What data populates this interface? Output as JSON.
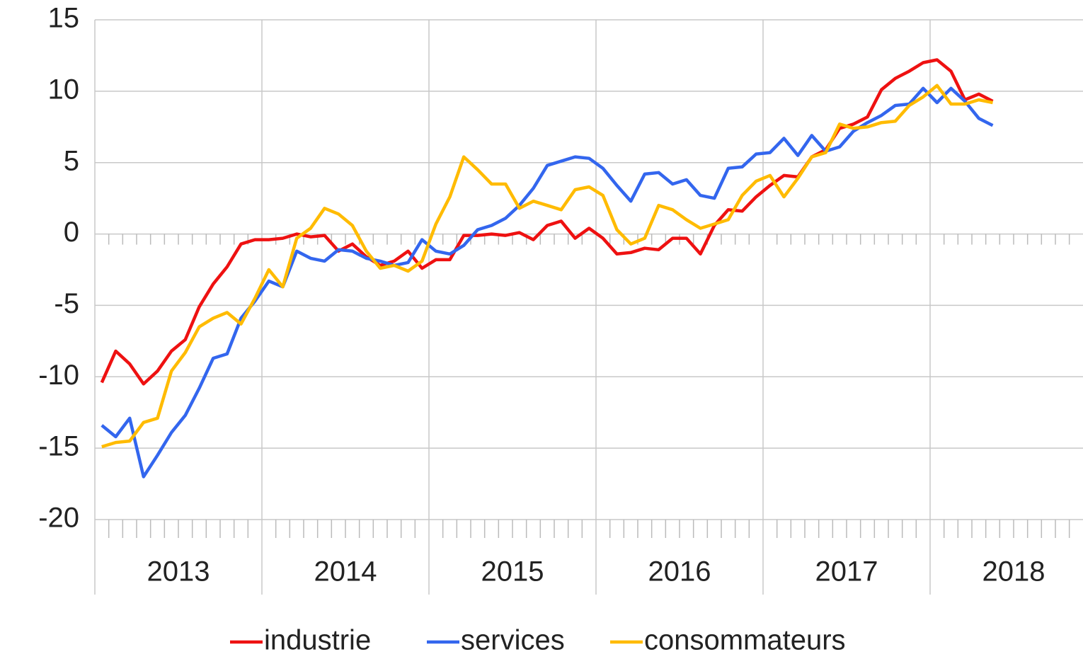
{
  "chart_data": {
    "type": "line",
    "categories": [
      null,
      null,
      null,
      null,
      null,
      null,
      null,
      null,
      null,
      null,
      null,
      null,
      null,
      null,
      null,
      null,
      null,
      null,
      null,
      null,
      null,
      null,
      null,
      null,
      null,
      null,
      null,
      null,
      null,
      null,
      null,
      null,
      null,
      null,
      null,
      null,
      null,
      null,
      null,
      null,
      null,
      null,
      null,
      null,
      null,
      null,
      null,
      null,
      null,
      null,
      null,
      null,
      null,
      null,
      null,
      null,
      null,
      null,
      null,
      null,
      null,
      null,
      null,
      null,
      null
    ],
    "period_labels": [
      "2013",
      "2014",
      "2015",
      "2016",
      "2017",
      "2018"
    ],
    "ylim": [
      -20,
      15
    ],
    "yticks": [
      -20,
      -15,
      -10,
      -5,
      0,
      5,
      10,
      15
    ],
    "grid": true,
    "legend": "bottom",
    "series": [
      {
        "name": "industrie",
        "color": "#ee1111",
        "values": [
          -10.4,
          -8.2,
          -9.1,
          -10.5,
          -9.6,
          -8.2,
          -7.4,
          -5.1,
          -3.5,
          -2.3,
          -0.7,
          -0.4,
          -0.4,
          -0.3,
          0,
          -0.2,
          -0.1,
          -1.2,
          -0.7,
          -1.6,
          -2.2,
          -1.9,
          -1.2,
          -2.4,
          -1.8,
          -1.8,
          -0.1,
          -0.1,
          0,
          -0.1,
          0.1,
          -0.4,
          0.6,
          0.9,
          -0.3,
          0.4,
          -0.3,
          -1.4,
          -1.3,
          -1.0,
          -1.1,
          -0.3,
          -0.3,
          -1.4,
          0.6,
          1.7,
          1.6,
          2.6,
          3.4,
          4.1,
          4.0,
          5.4,
          5.9,
          7.4,
          7.7,
          8.2,
          10.1,
          10.9,
          11.4,
          12.0,
          12.2,
          11.4,
          9.4,
          9.8,
          9.3
        ]
      },
      {
        "name": "services",
        "color": "#3366ee",
        "values": [
          -13.4,
          -14.2,
          -12.9,
          -17.0,
          -15.5,
          -13.9,
          -12.7,
          -10.8,
          -8.7,
          -8.4,
          -5.9,
          -4.7,
          -3.3,
          -3.7,
          -1.2,
          -1.7,
          -1.9,
          -1.1,
          -1.2,
          -1.7,
          -1.9,
          -2.2,
          -2.0,
          -0.4,
          -1.2,
          -1.4,
          -0.8,
          0.3,
          0.6,
          1.1,
          2.0,
          3.2,
          4.8,
          5.1,
          5.4,
          5.3,
          4.6,
          3.4,
          2.3,
          4.2,
          4.3,
          3.5,
          3.8,
          2.7,
          2.5,
          4.6,
          4.7,
          5.6,
          5.7,
          6.7,
          5.5,
          6.9,
          5.8,
          6.1,
          7.2,
          7.8,
          8.3,
          9.0,
          9.1,
          10.2,
          9.2,
          10.2,
          9.3,
          8.1,
          7.6
        ]
      },
      {
        "name": "consommateurs",
        "color": "#ffbb00",
        "values": [
          -14.9,
          -14.6,
          -14.5,
          -13.2,
          -12.9,
          -9.6,
          -8.3,
          -6.5,
          -5.9,
          -5.5,
          -6.3,
          -4.5,
          -2.5,
          -3.7,
          -0.3,
          0.4,
          1.8,
          1.4,
          0.6,
          -1.2,
          -2.4,
          -2.2,
          -2.6,
          -1.9,
          0.7,
          2.6,
          5.4,
          4.5,
          3.5,
          3.5,
          1.8,
          2.3,
          2.0,
          1.7,
          3.1,
          3.3,
          2.7,
          0.3,
          -0.7,
          -0.3,
          2.0,
          1.7,
          1.0,
          0.4,
          0.7,
          1.0,
          2.7,
          3.7,
          4.1,
          2.6,
          3.9,
          5.4,
          5.7,
          7.7,
          7.4,
          7.5,
          7.8,
          7.9,
          9.0,
          9.6,
          10.4,
          9.1,
          9.1,
          9.4,
          9.2
        ]
      }
    ]
  }
}
